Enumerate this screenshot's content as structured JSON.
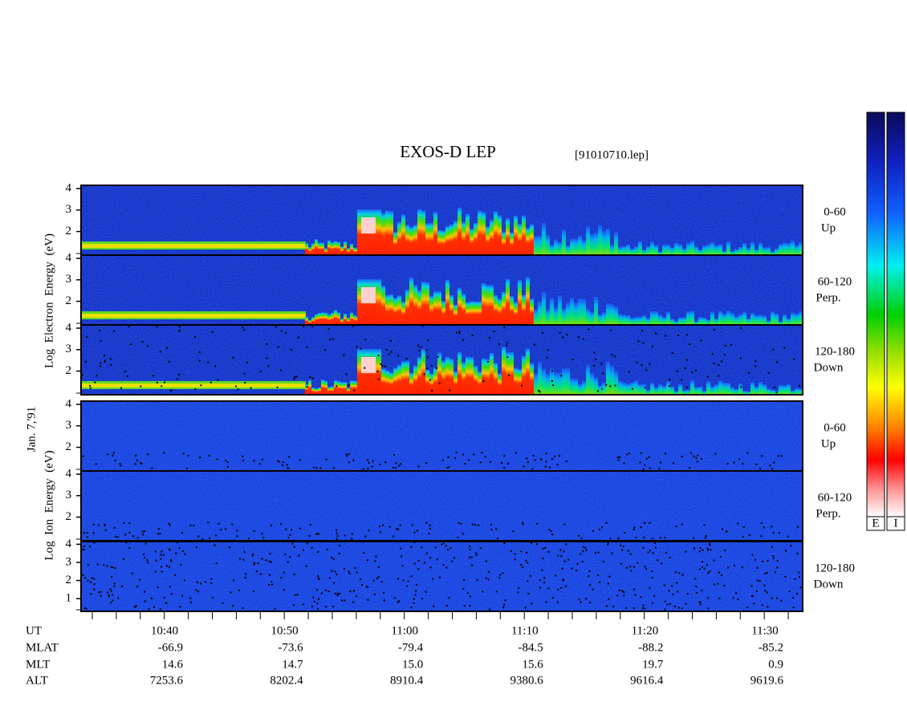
{
  "title": "EXOS-D LEP",
  "file": "[91010710.lep]",
  "date": "Jan. 7,'91",
  "groups": [
    {
      "ylabel": "Log  Electron  Energy  (eV)",
      "kind": "electron",
      "panels": [
        {
          "label": "0-60",
          "sub": "Up",
          "ylim": [
            0.9,
            4.15
          ],
          "yticks": [
            2,
            3,
            4
          ]
        },
        {
          "label": "60-120",
          "sub": "Perp.",
          "ylim": [
            0.9,
            4.15
          ],
          "yticks": [
            2,
            3,
            4
          ]
        },
        {
          "label": "120-180",
          "sub": "Down",
          "ylim": [
            0.9,
            4.15
          ],
          "yticks": [
            2,
            3,
            4
          ]
        }
      ]
    },
    {
      "ylabel": "Log  Ion  Energy  (eV)",
      "kind": "ion",
      "panels": [
        {
          "label": "0-60",
          "sub": "Up",
          "ylim": [
            0.9,
            4.15
          ],
          "yticks": [
            2,
            3,
            4
          ]
        },
        {
          "label": "60-120",
          "sub": "Perp.",
          "ylim": [
            0.9,
            4.15
          ],
          "yticks": [
            2,
            3,
            4
          ]
        },
        {
          "label": "120-180",
          "sub": "Down",
          "ylim": [
            0.3,
            4.15
          ],
          "yticks": [
            1,
            2,
            3,
            4
          ]
        }
      ]
    }
  ],
  "time_axis": {
    "row_labels": [
      "UT",
      "MLAT",
      "MLT",
      "ALT"
    ],
    "columns": [
      [
        "10:40",
        "-66.9",
        "14.6",
        "7253.6"
      ],
      [
        "10:50",
        "-73.6",
        "14.7",
        "8202.4"
      ],
      [
        "11:00",
        "-79.4",
        "15.0",
        "8910.4"
      ],
      [
        "11:10",
        "-84.5",
        "15.6",
        "9380.6"
      ],
      [
        "11:20",
        "-88.2",
        "19.7",
        "9616.4"
      ],
      [
        "11:30",
        "-85.2",
        "0.9",
        "9619.6"
      ]
    ]
  },
  "colorbars": [
    "E",
    "I"
  ]
}
